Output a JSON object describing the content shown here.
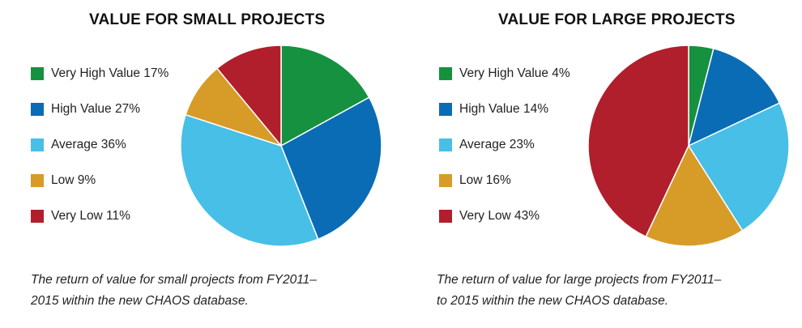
{
  "chart_data": [
    {
      "type": "pie",
      "title": "VALUE FOR SMALL PROJECTS",
      "categories": [
        "Very High Value",
        "High Value",
        "Average",
        "Low",
        "Very Low"
      ],
      "legend_labels": [
        "Very High Value 17%",
        "High Value 27%",
        "Average 36%",
        "Low 9%",
        "Very Low 11%"
      ],
      "values": [
        17,
        27,
        36,
        9,
        11
      ],
      "colors": [
        "#16913f",
        "#0a6cb5",
        "#47bfe7",
        "#d79b28",
        "#b01f2b"
      ],
      "legend_position": "left",
      "caption_lines": [
        "The return of value for small projects from FY2011–",
        "2015 within the new CHAOS database."
      ]
    },
    {
      "type": "pie",
      "title": "VALUE FOR LARGE PROJECTS",
      "categories": [
        "Very High Value",
        "High Value",
        "Average",
        "Low",
        "Very Low"
      ],
      "legend_labels": [
        "Very High Value 4%",
        "High Value 14%",
        "Average 23%",
        "Low 16%",
        "Very Low 43%"
      ],
      "values": [
        4,
        14,
        23,
        16,
        43
      ],
      "colors": [
        "#16913f",
        "#0a6cb5",
        "#47bfe7",
        "#d79b28",
        "#b01f2b"
      ],
      "legend_position": "left",
      "caption_lines": [
        "The return of value for large projects from FY2011–",
        "to 2015 within the new CHAOS database."
      ]
    }
  ]
}
